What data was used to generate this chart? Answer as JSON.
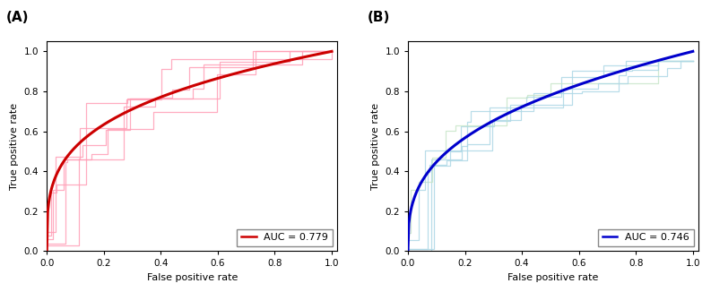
{
  "panel_A": {
    "title": "(A)",
    "auc_label": "AUC = 0.779",
    "main_color": "#CC0000",
    "cv_color": "#FF9EB5",
    "xlabel": "False positive rate",
    "ylabel": "True positive rate",
    "xlim": [
      0.0,
      1.02
    ],
    "ylim": [
      0.0,
      1.05
    ],
    "auc_val": 0.779
  },
  "panel_B": {
    "title": "(B)",
    "auc_label": "AUC = 0.746",
    "main_color": "#0000CC",
    "cv_color_1": "#ADD8E6",
    "cv_color_2": "#C8E6C9",
    "xlabel": "False positive rate",
    "ylabel": "True positive rate",
    "xlim": [
      0.0,
      1.02
    ],
    "ylim": [
      0.0,
      1.05
    ],
    "auc_val": 0.746
  },
  "figsize": [
    7.93,
    3.26
  ],
  "dpi": 100
}
